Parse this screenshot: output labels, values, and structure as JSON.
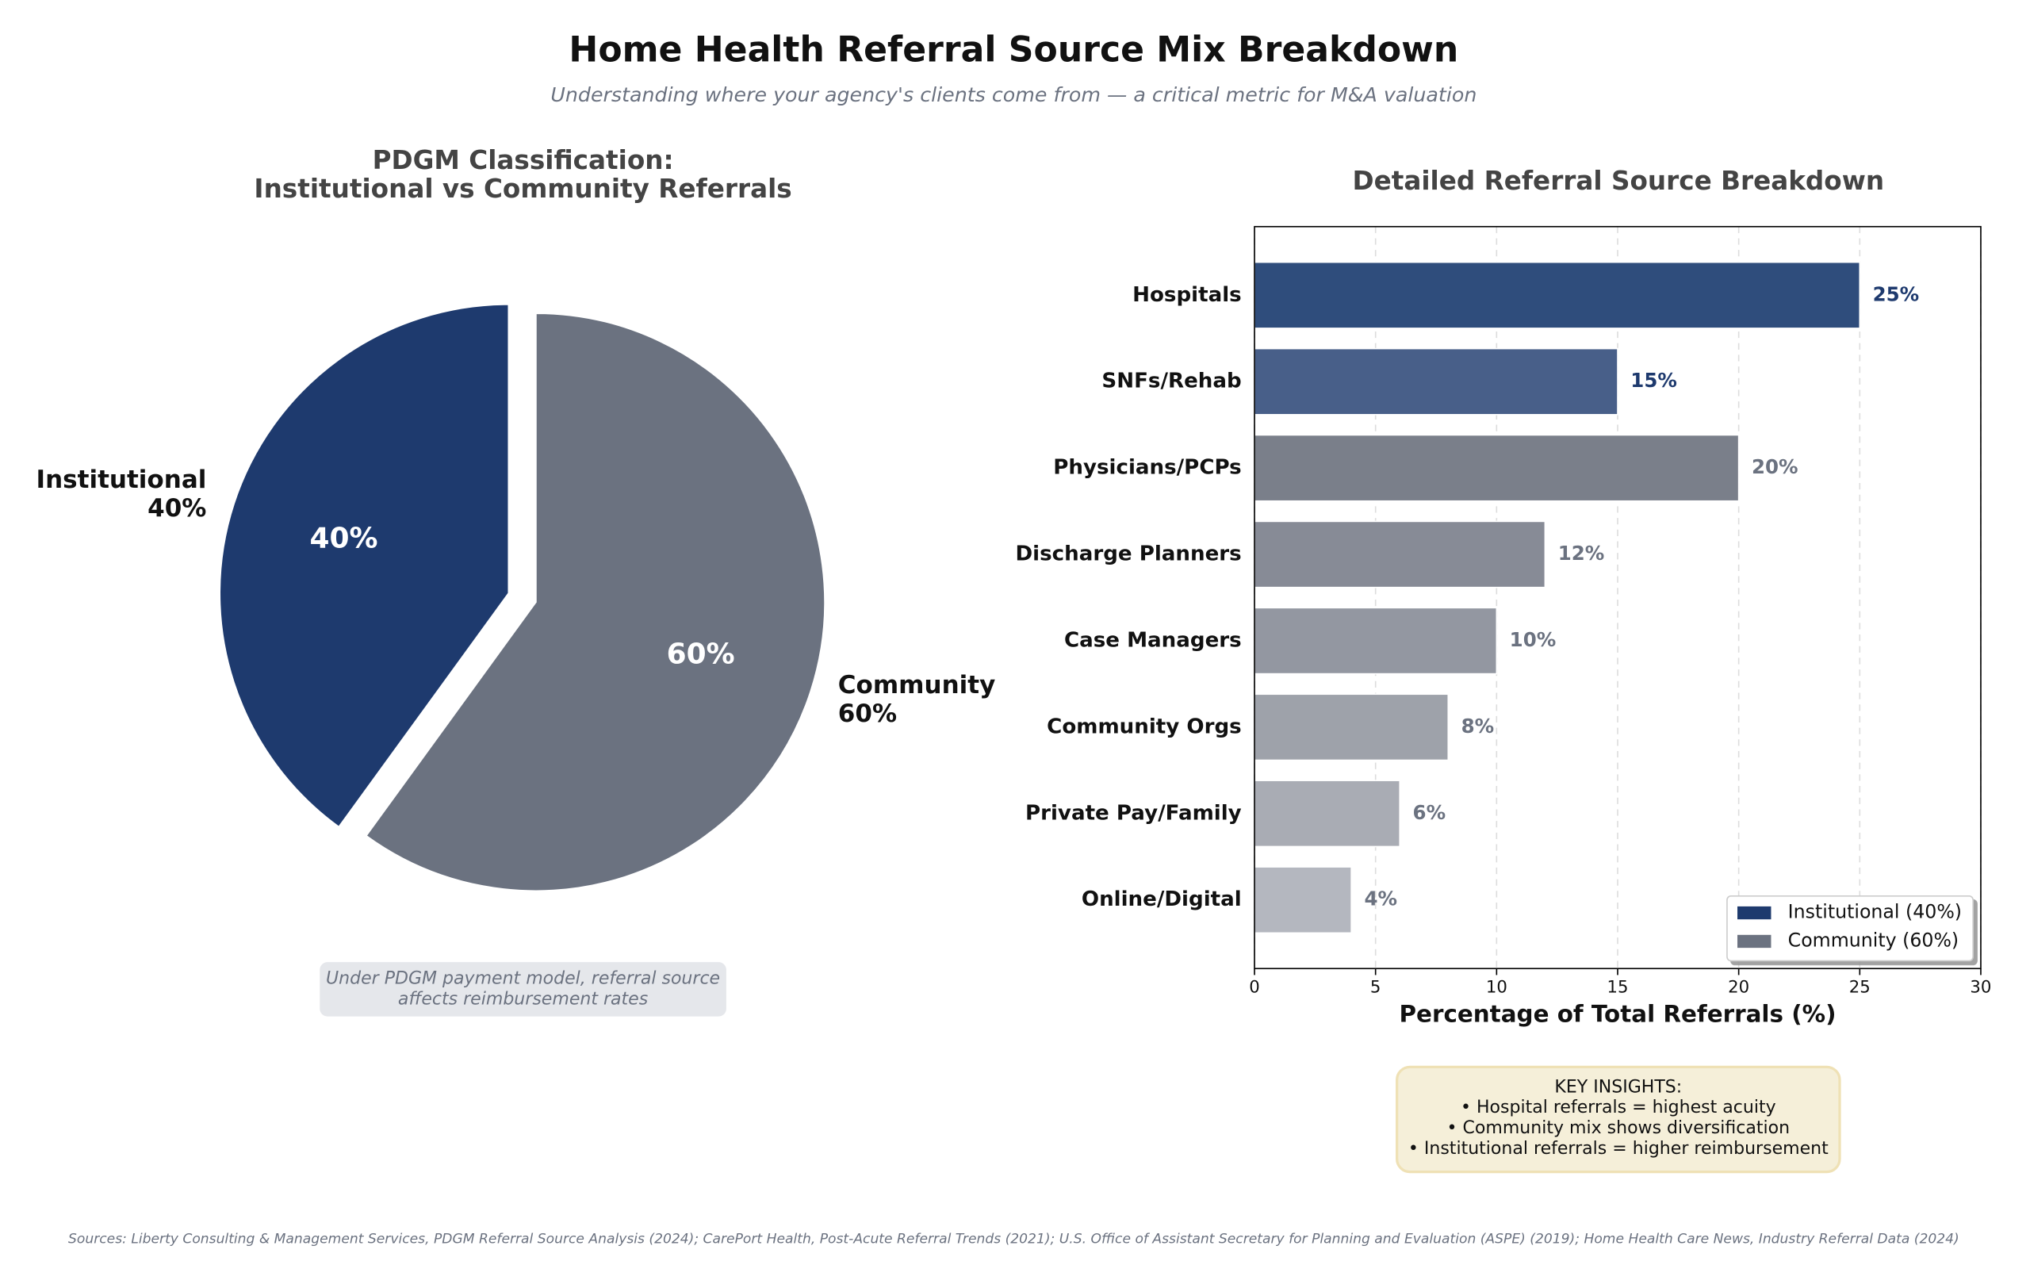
{
  "title": "Home Health Referral Source Mix Breakdown",
  "subtitle": "Understanding where your agency's clients come from — a critical metric for M&A valuation",
  "source": "Sources: Liberty Consulting & Management Services, PDGM Referral Source Analysis (2024); CarePort Health, Post-Acute Referral Trends (2021); U.S. Office of Assistant Secretary for Planning and Evaluation (ASPE) (2019); Home Health Care News, Industry Referral Data (2024)",
  "chart_data": [
    {
      "type": "pie",
      "title": [
        "PDGM Classification:",
        "Institutional vs Community Referrals"
      ],
      "categories": [
        "Institutional",
        "Community"
      ],
      "values": [
        40,
        60
      ],
      "value_labels": [
        "40%",
        "60%"
      ],
      "colors": [
        "#1e3a6e",
        "#6b7280"
      ],
      "explode": [
        0.1,
        0
      ],
      "annotation": [
        "Under PDGM payment model, referral source",
        "affects reimbursement rates"
      ]
    },
    {
      "type": "hbar",
      "title": "Detailed Referral Source Breakdown",
      "categories": [
        "Hospitals",
        "SNFs/Rehab",
        "Physicians/PCPs",
        "Discharge Planners",
        "Case Managers",
        "Community Orgs",
        "Private Pay/Family",
        "Online/Digital"
      ],
      "values": [
        25,
        15,
        20,
        12,
        10,
        8,
        6,
        4
      ],
      "value_labels": [
        "25%",
        "15%",
        "20%",
        "12%",
        "10%",
        "8%",
        "6%",
        "4%"
      ],
      "colors": [
        "#2f4d7c",
        "#485f89",
        "#7a7f8a",
        "#878b96",
        "#9397a1",
        "#9ea2aa",
        "#a9acb4",
        "#b4b7bf"
      ],
      "value_label_colors": [
        "#1e3a6e",
        "#1e3a6e",
        "#6b7280",
        "#6b7280",
        "#6b7280",
        "#6b7280",
        "#6b7280",
        "#6b7280"
      ],
      "xlabel": "Percentage of Total Referrals (%)",
      "xlim": [
        0,
        30
      ],
      "xticks": [
        0,
        5,
        10,
        15,
        20,
        25,
        30
      ],
      "grid": true,
      "legend": {
        "position": "lower right",
        "entries": [
          {
            "name": "Institutional (40%)",
            "color": "#1e3a6e"
          },
          {
            "name": "Community (60%)",
            "color": "#6b7280"
          }
        ]
      },
      "insights": [
        "KEY INSIGHTS:",
        "• Hospital referrals = highest acuity",
        "• Community mix shows diversification",
        "• Institutional referrals = higher reimbursement"
      ]
    }
  ]
}
